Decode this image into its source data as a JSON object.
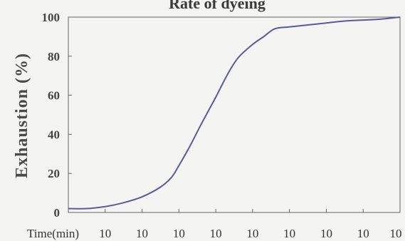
{
  "chart_data": {
    "type": "line",
    "title": "Rate of dyeing",
    "ylabel": "Exhaustion (%)",
    "xlabel": "Time(min)",
    "ylim": [
      0,
      100
    ],
    "yticks": [
      "0",
      "20",
      "40",
      "60",
      "80",
      "100"
    ],
    "xlim": [
      0,
      9
    ],
    "xtick_labels": [
      "10",
      "10",
      "10",
      "10",
      "10",
      "10",
      "10",
      "10",
      "10"
    ],
    "grid": false,
    "colors": {
      "line": "#5a5aa0",
      "axis": "#666666"
    },
    "series": [
      {
        "x": [
          0,
          0.5,
          1,
          1.5,
          2,
          2.5,
          2.8,
          3,
          3.3,
          3.6,
          4,
          4.3,
          4.6,
          5,
          5.3,
          5.6,
          6,
          6.5,
          7,
          7.5,
          8,
          8.5,
          9
        ],
        "values": [
          2,
          2,
          3,
          5,
          8,
          13,
          18,
          24,
          34,
          45,
          59,
          70,
          79,
          86,
          90,
          94,
          95,
          96,
          97,
          98,
          98.5,
          99,
          100
        ]
      }
    ]
  }
}
